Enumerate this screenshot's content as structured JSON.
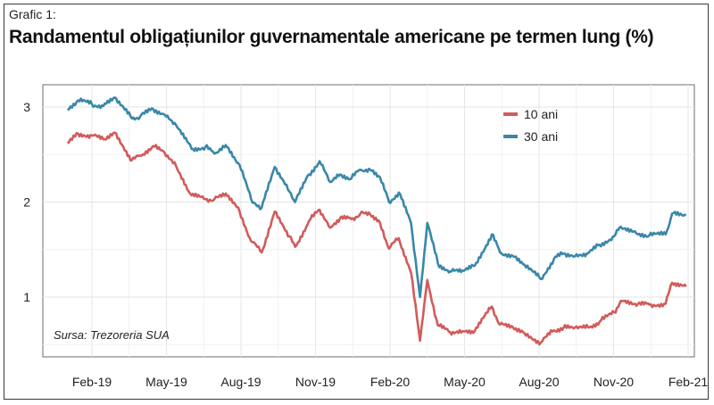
{
  "header": {
    "label": "Grafic 1:",
    "title": "Randamentul obligațiunilor guvernamentale americane pe termen lung (%)"
  },
  "chart_data": {
    "type": "line",
    "title": "Randamentul obligațiunilor guvernamentale americane pe termen lung (%)",
    "xlabel": "",
    "ylabel": "",
    "x_tick_labels": [
      "Feb-19",
      "May-19",
      "Aug-19",
      "Nov-19",
      "Feb-20",
      "May-20",
      "Aug-20",
      "Nov-20",
      "Feb-21"
    ],
    "y_ticks": [
      1,
      2,
      3
    ],
    "ylim": [
      0.4,
      3.3
    ],
    "grid": true,
    "legend_position": "top-right",
    "source": "Sursa: Trezoreria SUA",
    "series": [
      {
        "name": "10 ani",
        "color": "#d15b5b",
        "points": [
          [
            "2019-01-02",
            2.62
          ],
          [
            "2019-01-15",
            2.72
          ],
          [
            "2019-02-01",
            2.7
          ],
          [
            "2019-02-15",
            2.66
          ],
          [
            "2019-03-01",
            2.73
          ],
          [
            "2019-03-22",
            2.44
          ],
          [
            "2019-04-01",
            2.49
          ],
          [
            "2019-04-17",
            2.59
          ],
          [
            "2019-05-01",
            2.52
          ],
          [
            "2019-05-15",
            2.38
          ],
          [
            "2019-06-03",
            2.07
          ],
          [
            "2019-06-20",
            2.03
          ],
          [
            "2019-07-01",
            2.03
          ],
          [
            "2019-07-15",
            2.09
          ],
          [
            "2019-08-01",
            1.9
          ],
          [
            "2019-08-15",
            1.59
          ],
          [
            "2019-08-28",
            1.47
          ],
          [
            "2019-09-13",
            1.9
          ],
          [
            "2019-10-01",
            1.64
          ],
          [
            "2019-10-08",
            1.53
          ],
          [
            "2019-10-25",
            1.8
          ],
          [
            "2019-11-07",
            1.92
          ],
          [
            "2019-11-20",
            1.73
          ],
          [
            "2019-12-02",
            1.83
          ],
          [
            "2019-12-16",
            1.82
          ],
          [
            "2019-12-27",
            1.88
          ],
          [
            "2020-01-08",
            1.87
          ],
          [
            "2020-01-20",
            1.78
          ],
          [
            "2020-01-31",
            1.51
          ],
          [
            "2020-02-12",
            1.62
          ],
          [
            "2020-02-27",
            1.26
          ],
          [
            "2020-03-09",
            0.54
          ],
          [
            "2020-03-18",
            1.18
          ],
          [
            "2020-03-31",
            0.7
          ],
          [
            "2020-04-15",
            0.63
          ],
          [
            "2020-04-30",
            0.64
          ],
          [
            "2020-05-15",
            0.64
          ],
          [
            "2020-06-05",
            0.9
          ],
          [
            "2020-06-15",
            0.71
          ],
          [
            "2020-07-01",
            0.68
          ],
          [
            "2020-07-15",
            0.62
          ],
          [
            "2020-08-04",
            0.52
          ],
          [
            "2020-08-20",
            0.65
          ],
          [
            "2020-09-01",
            0.68
          ],
          [
            "2020-09-15",
            0.68
          ],
          [
            "2020-10-01",
            0.68
          ],
          [
            "2020-10-15",
            0.74
          ],
          [
            "2020-11-02",
            0.84
          ],
          [
            "2020-11-10",
            0.96
          ],
          [
            "2020-12-01",
            0.93
          ],
          [
            "2020-12-15",
            0.92
          ],
          [
            "2021-01-04",
            0.93
          ],
          [
            "2021-01-12",
            1.15
          ],
          [
            "2021-01-29",
            1.11
          ]
        ]
      },
      {
        "name": "30 ani",
        "color": "#3a87a8",
        "points": [
          [
            "2019-01-02",
            2.97
          ],
          [
            "2019-01-15",
            3.07
          ],
          [
            "2019-02-01",
            3.03
          ],
          [
            "2019-02-15",
            3.01
          ],
          [
            "2019-03-01",
            3.1
          ],
          [
            "2019-03-22",
            2.88
          ],
          [
            "2019-04-01",
            2.9
          ],
          [
            "2019-04-17",
            2.98
          ],
          [
            "2019-05-01",
            2.92
          ],
          [
            "2019-05-15",
            2.81
          ],
          [
            "2019-06-03",
            2.56
          ],
          [
            "2019-06-20",
            2.58
          ],
          [
            "2019-07-01",
            2.51
          ],
          [
            "2019-07-15",
            2.6
          ],
          [
            "2019-08-01",
            2.39
          ],
          [
            "2019-08-15",
            2.03
          ],
          [
            "2019-08-28",
            1.94
          ],
          [
            "2019-09-13",
            2.37
          ],
          [
            "2019-10-01",
            2.11
          ],
          [
            "2019-10-08",
            2.0
          ],
          [
            "2019-10-25",
            2.29
          ],
          [
            "2019-11-07",
            2.43
          ],
          [
            "2019-11-20",
            2.21
          ],
          [
            "2019-12-02",
            2.29
          ],
          [
            "2019-12-16",
            2.25
          ],
          [
            "2019-12-27",
            2.34
          ],
          [
            "2020-01-08",
            2.34
          ],
          [
            "2020-01-20",
            2.26
          ],
          [
            "2020-01-31",
            2.0
          ],
          [
            "2020-02-12",
            2.1
          ],
          [
            "2020-02-27",
            1.78
          ],
          [
            "2020-03-09",
            1.0
          ],
          [
            "2020-03-18",
            1.78
          ],
          [
            "2020-03-31",
            1.35
          ],
          [
            "2020-04-15",
            1.27
          ],
          [
            "2020-04-30",
            1.28
          ],
          [
            "2020-05-15",
            1.33
          ],
          [
            "2020-06-05",
            1.66
          ],
          [
            "2020-06-15",
            1.47
          ],
          [
            "2020-07-01",
            1.43
          ],
          [
            "2020-07-15",
            1.34
          ],
          [
            "2020-08-04",
            1.19
          ],
          [
            "2020-08-20",
            1.4
          ],
          [
            "2020-09-01",
            1.46
          ],
          [
            "2020-09-15",
            1.43
          ],
          [
            "2020-10-01",
            1.46
          ],
          [
            "2020-10-15",
            1.55
          ],
          [
            "2020-11-02",
            1.64
          ],
          [
            "2020-11-10",
            1.74
          ],
          [
            "2020-12-01",
            1.66
          ],
          [
            "2020-12-15",
            1.65
          ],
          [
            "2021-01-04",
            1.66
          ],
          [
            "2021-01-12",
            1.88
          ],
          [
            "2021-01-29",
            1.86
          ]
        ]
      }
    ]
  }
}
